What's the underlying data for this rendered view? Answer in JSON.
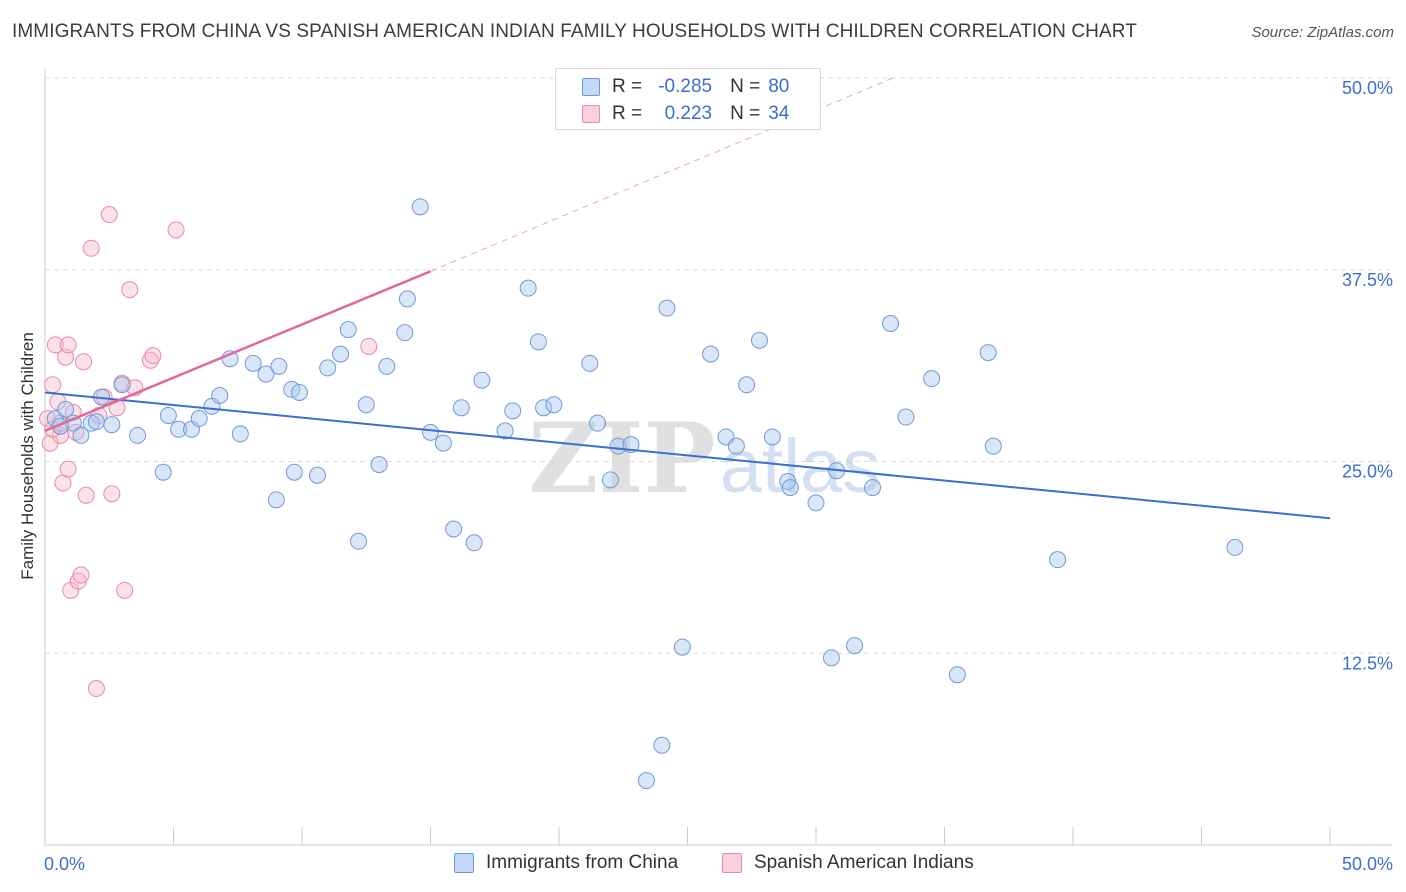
{
  "title": "IMMIGRANTS FROM CHINA VS SPANISH AMERICAN INDIAN FAMILY HOUSEHOLDS WITH CHILDREN CORRELATION CHART",
  "source": "Source: ZipAtlas.com",
  "watermark": {
    "zip": "ZIP",
    "atlas": "atlas"
  },
  "legend_stats": [
    {
      "r_label": "R =",
      "r_value": "-0.285",
      "n_label": "N =",
      "n_value": "80"
    },
    {
      "r_label": "R =",
      "r_value": "0.223",
      "n_label": "N =",
      "n_value": "34"
    }
  ],
  "colors": {
    "china_fill": "#a9c8f0",
    "china_stroke": "#6f9ad8",
    "china_line": "#3a6fd0",
    "sai_fill": "#f7bccd",
    "sai_stroke": "#e88aa6",
    "sai_line": "#e0699a",
    "grid": "#dcdcdc",
    "axis": "#cccccc",
    "tick_label": "#3a6fd0"
  },
  "chart_data": {
    "type": "scatter",
    "title": "IMMIGRANTS FROM CHINA VS SPANISH AMERICAN INDIAN FAMILY HOUSEHOLDS WITH CHILDREN CORRELATION CHART",
    "xlabel": "",
    "ylabel": "Family Households with Children",
    "xlim": [
      0,
      50
    ],
    "ylim": [
      0,
      50
    ],
    "x_tick_labels": [
      "0.0%",
      "50.0%"
    ],
    "y_ticks": [
      12.5,
      25.0,
      37.5,
      50.0
    ],
    "y_tick_labels": [
      "12.5%",
      "25.0%",
      "37.5%",
      "50.0%"
    ],
    "grid": true,
    "legend_position": "bottom",
    "series": [
      {
        "name": "Immigrants from China",
        "trend": {
          "x": [
            0,
            50
          ],
          "y": [
            29.5,
            21.3
          ],
          "style": "solid"
        },
        "points": [
          [
            0.4,
            27.8
          ],
          [
            0.8,
            28.4
          ],
          [
            1.1,
            27.5
          ],
          [
            1.4,
            26.7
          ],
          [
            1.8,
            27.5
          ],
          [
            2.2,
            29.2
          ],
          [
            2.6,
            27.4
          ],
          [
            3.0,
            30.0
          ],
          [
            3.6,
            26.7
          ],
          [
            4.6,
            24.3
          ],
          [
            4.8,
            28.0
          ],
          [
            5.2,
            27.1
          ],
          [
            5.7,
            27.1
          ],
          [
            6.0,
            27.8
          ],
          [
            6.5,
            28.6
          ],
          [
            6.8,
            29.3
          ],
          [
            7.6,
            26.8
          ],
          [
            7.2,
            31.7
          ],
          [
            8.1,
            31.4
          ],
          [
            8.6,
            30.7
          ],
          [
            9.0,
            22.5
          ],
          [
            9.1,
            31.2
          ],
          [
            9.7,
            24.3
          ],
          [
            9.6,
            29.7
          ],
          [
            9.9,
            29.5
          ],
          [
            10.6,
            24.1
          ],
          [
            11.0,
            31.1
          ],
          [
            11.5,
            32.0
          ],
          [
            11.8,
            33.6
          ],
          [
            12.2,
            19.8
          ],
          [
            12.5,
            28.7
          ],
          [
            13.0,
            24.8
          ],
          [
            13.3,
            31.2
          ],
          [
            14.0,
            33.4
          ],
          [
            14.1,
            35.6
          ],
          [
            14.6,
            41.6
          ],
          [
            15.0,
            26.9
          ],
          [
            15.5,
            26.2
          ],
          [
            15.9,
            20.6
          ],
          [
            16.2,
            28.5
          ],
          [
            16.7,
            19.7
          ],
          [
            17.0,
            30.3
          ],
          [
            17.9,
            27.0
          ],
          [
            18.2,
            28.3
          ],
          [
            18.8,
            36.3
          ],
          [
            19.2,
            32.8
          ],
          [
            19.4,
            28.5
          ],
          [
            19.8,
            28.7
          ],
          [
            21.2,
            31.4
          ],
          [
            21.5,
            27.5
          ],
          [
            22.0,
            23.8
          ],
          [
            22.3,
            26.0
          ],
          [
            22.8,
            26.1
          ],
          [
            23.4,
            4.2
          ],
          [
            24.0,
            6.5
          ],
          [
            24.2,
            35.0
          ],
          [
            24.8,
            12.9
          ],
          [
            25.9,
            32.0
          ],
          [
            26.5,
            26.6
          ],
          [
            26.9,
            26.0
          ],
          [
            27.3,
            30.0
          ],
          [
            27.8,
            32.9
          ],
          [
            28.3,
            26.6
          ],
          [
            28.9,
            23.7
          ],
          [
            29.0,
            23.3
          ],
          [
            30.0,
            22.3
          ],
          [
            30.6,
            12.2
          ],
          [
            30.8,
            24.4
          ],
          [
            31.5,
            13.0
          ],
          [
            32.2,
            23.3
          ],
          [
            32.9,
            34.0
          ],
          [
            33.5,
            27.9
          ],
          [
            34.5,
            30.4
          ],
          [
            35.5,
            11.1
          ],
          [
            36.7,
            32.1
          ],
          [
            36.9,
            26.0
          ],
          [
            39.4,
            18.6
          ],
          [
            46.3,
            19.4
          ],
          [
            0.6,
            27.3
          ],
          [
            2.0,
            27.6
          ]
        ]
      },
      {
        "name": "Spanish American Indians",
        "trend": {
          "x": [
            0,
            15
          ],
          "y": [
            27.0,
            37.4
          ],
          "style": "solid",
          "extension": {
            "x": [
              15,
              33
            ],
            "y": [
              37.4,
              50.0
            ],
            "style": "dashed"
          }
        },
        "points": [
          [
            0.1,
            27.8
          ],
          [
            0.2,
            26.2
          ],
          [
            0.3,
            30.0
          ],
          [
            0.4,
            32.6
          ],
          [
            0.5,
            28.9
          ],
          [
            0.6,
            26.7
          ],
          [
            0.7,
            23.6
          ],
          [
            0.8,
            31.8
          ],
          [
            0.9,
            32.6
          ],
          [
            1.0,
            16.6
          ],
          [
            1.1,
            28.2
          ],
          [
            1.2,
            26.9
          ],
          [
            1.3,
            17.2
          ],
          [
            1.4,
            17.6
          ],
          [
            1.5,
            31.5
          ],
          [
            1.6,
            22.8
          ],
          [
            1.8,
            38.9
          ],
          [
            2.0,
            10.2
          ],
          [
            2.3,
            29.2
          ],
          [
            2.5,
            41.1
          ],
          [
            2.6,
            22.9
          ],
          [
            2.8,
            28.5
          ],
          [
            3.0,
            30.1
          ],
          [
            3.1,
            16.6
          ],
          [
            3.3,
            36.2
          ],
          [
            3.5,
            29.8
          ],
          [
            4.1,
            31.6
          ],
          [
            4.2,
            31.9
          ],
          [
            5.1,
            40.1
          ],
          [
            0.9,
            24.5
          ],
          [
            0.3,
            27.1
          ],
          [
            2.1,
            28.0
          ],
          [
            12.6,
            32.5
          ],
          [
            0.6,
            27.5
          ]
        ]
      }
    ]
  }
}
